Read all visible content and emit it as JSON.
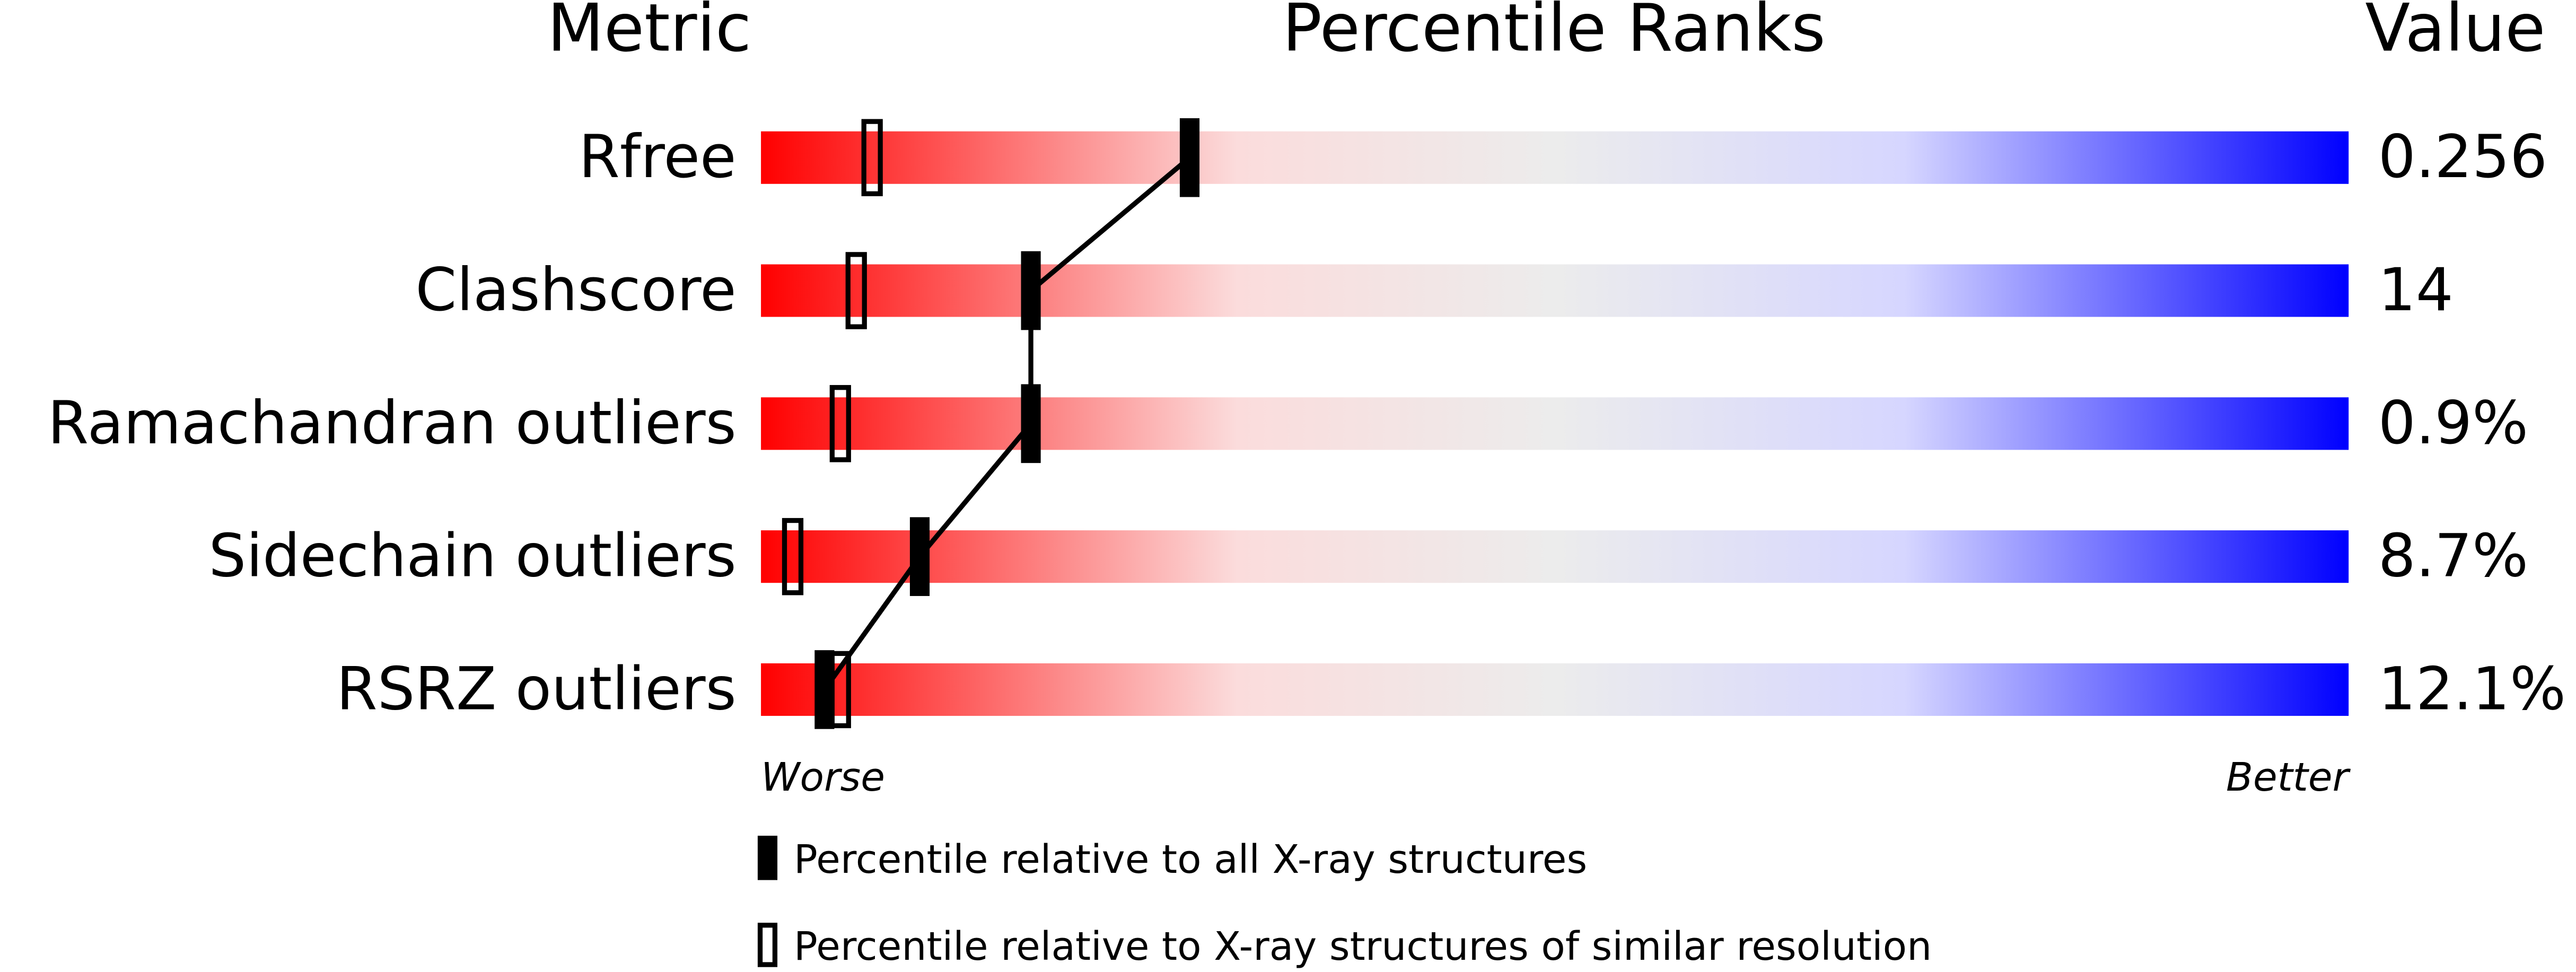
{
  "chart_data": {
    "type": "percentile",
    "metric_header": "Metric",
    "title": "Percentile Ranks",
    "value_header": "Value",
    "categories": [
      "Rfree",
      "Clashscore",
      "Ramachandran outliers",
      "Sidechain outliers",
      "RSRZ outliers"
    ],
    "metric_values": [
      "0.256",
      "14",
      "0.9%",
      "8.7%",
      "12.1%"
    ],
    "series": [
      {
        "name": "Percentile relative to all X-ray structures",
        "color": "#000000",
        "values": [
          27,
          17,
          17,
          10,
          4
        ]
      },
      {
        "name": "Percentile relative to X-ray structures of similar resolution",
        "color": "#000000",
        "values": [
          7,
          6,
          5,
          2,
          5
        ]
      }
    ],
    "xlim": [
      0,
      100
    ],
    "x_low_label": "Worse",
    "x_high_label": "Better"
  }
}
